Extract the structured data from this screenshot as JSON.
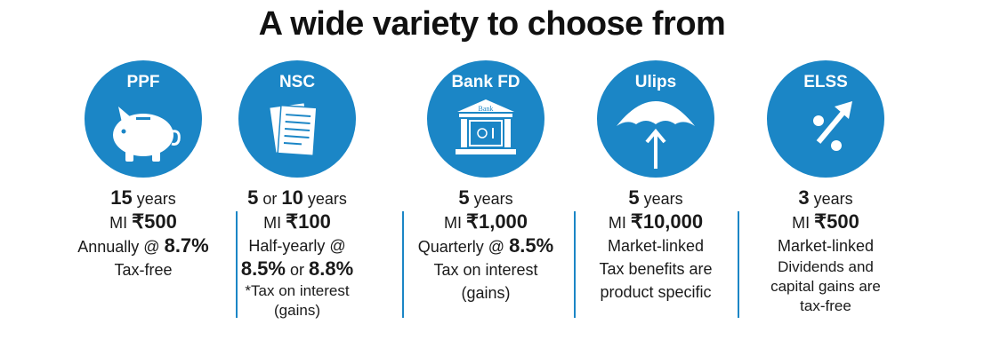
{
  "title": "A wide variety to choose from",
  "accent_color": "#1b86c6",
  "schemes": [
    {
      "name": "PPF",
      "icon": "piggy-bank-icon",
      "years_num": "15",
      "years_word": " years",
      "mi_label": "MI ",
      "mi_value": "₹500",
      "rate_prefix": "Annually @ ",
      "rate_value": "8.7%",
      "tax": "Tax-free"
    },
    {
      "name": "NSC",
      "icon": "documents-icon",
      "years_num_a": "5",
      "years_or": " or ",
      "years_num_b": "10",
      "years_word": " years",
      "mi_label": "MI ",
      "mi_value": "₹100",
      "rate_prefix": "Half-yearly @",
      "rate_value_a": "8.5%",
      "rate_or": " or ",
      "rate_value_b": "8.8%",
      "tax_line1": "*Tax on interest",
      "tax_line2": "(gains)"
    },
    {
      "name": "Bank FD",
      "icon": "bank-building-icon",
      "icon_label": "Bank",
      "years_num": "5",
      "years_word": " years",
      "mi_label": "MI ",
      "mi_value": "₹1,000",
      "rate_prefix": "Quarterly @ ",
      "rate_value": "8.5%",
      "tax_line1": "Tax on interest",
      "tax_line2": "(gains)"
    },
    {
      "name": "Ulips",
      "icon": "umbrella-icon",
      "years_num": "5",
      "years_word": " years",
      "mi_label": "MI ",
      "mi_value": "₹10,000",
      "rate_text": "Market-linked",
      "tax_line1": "Tax benefits are",
      "tax_line2": "product specific"
    },
    {
      "name": "ELSS",
      "icon": "percent-growth-icon",
      "years_num": "3",
      "years_word": " years",
      "mi_label": "MI ",
      "mi_value": "₹500",
      "rate_text": "Market-linked",
      "tax_line1": "Dividends and",
      "tax_line2": "capital gains are",
      "tax_line3": "tax-free"
    }
  ]
}
